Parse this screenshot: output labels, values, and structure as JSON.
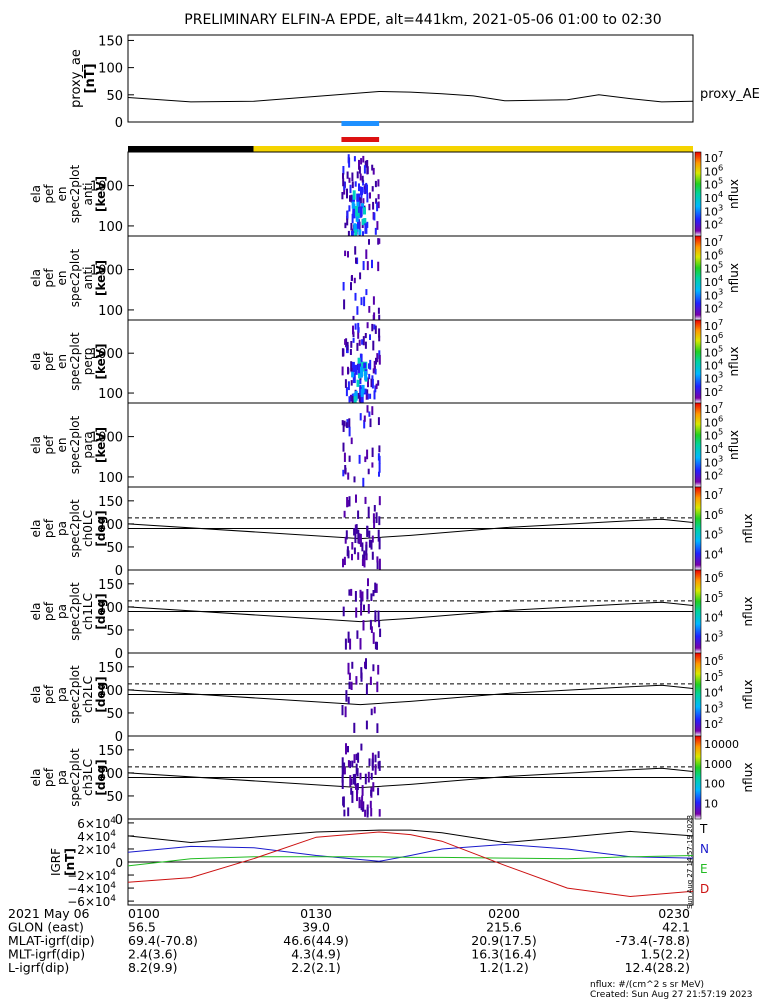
{
  "title": "PRELIMINARY ELFIN-A EPDE, alt=441km, 2021-05-06 01:00 to 02:30",
  "colors": {
    "black": "#000000",
    "blue_bar": "#1e90ff",
    "red_bar": "#dd1111",
    "yellow": "#f5d400",
    "dark": "#000000",
    "T": "#000000",
    "N": "#1a1acc",
    "E": "#22bb22",
    "D": "#cc1111"
  },
  "chart_data": [
    {
      "type": "line",
      "panel": "proxy_ae",
      "ylabel": [
        "proxy_ae",
        "[nT]"
      ],
      "ylim": [
        0,
        150
      ],
      "yticks": [
        "150",
        "100",
        "50",
        "0"
      ],
      "legend": "proxy_AE",
      "x": [
        0,
        10,
        20,
        30,
        40,
        45,
        50,
        55,
        60,
        70,
        75,
        80,
        85,
        90
      ],
      "values": [
        45,
        37,
        38,
        47,
        56,
        55,
        52,
        48,
        39,
        41,
        50,
        43,
        37,
        38
      ]
    },
    {
      "type": "table",
      "panel": "science zone bars",
      "bars": [
        "blue",
        "red"
      ],
      "x_range_minutes": [
        34,
        40
      ],
      "black_range_minutes": [
        0,
        20
      ],
      "yellow_range_minutes": [
        20,
        90
      ]
    },
    {
      "type": "heatmap",
      "panel": "en spec antiparallel",
      "ylabel": [
        "ela",
        "pef",
        "en",
        "spec2plot",
        "anti",
        "[keV]"
      ],
      "yticks": [
        "1000",
        "100"
      ],
      "colorbar": {
        "label": "nflux",
        "ticks": [
          "10^7",
          "10^6",
          "10^5",
          "10^4",
          "10^3",
          "10^2"
        ]
      }
    },
    {
      "type": "heatmap",
      "panel": "en spec anti",
      "ylabel": [
        "ela",
        "pef",
        "en",
        "spec2plot",
        "anti",
        "[keV]"
      ],
      "yticks": [
        "1000",
        "100"
      ],
      "colorbar": {
        "label": "nflux",
        "ticks": [
          "10^7",
          "10^6",
          "10^5",
          "10^4",
          "10^3",
          "10^2"
        ]
      }
    },
    {
      "type": "heatmap",
      "panel": "en spec perp",
      "ylabel": [
        "ela",
        "pef",
        "en",
        "spec2plot",
        "perp",
        "[keV]"
      ],
      "yticks": [
        "1000",
        "100"
      ],
      "colorbar": {
        "label": "nflux",
        "ticks": [
          "10^7",
          "10^6",
          "10^5",
          "10^4",
          "10^3",
          "10^2"
        ]
      }
    },
    {
      "type": "heatmap",
      "panel": "en spec para",
      "ylabel": [
        "ela",
        "pef",
        "en",
        "spec2plot",
        "para",
        "[keV]"
      ],
      "yticks": [
        "1000",
        "100"
      ],
      "colorbar": {
        "label": "nflux",
        "ticks": [
          "10^7",
          "10^6",
          "10^5",
          "10^4",
          "10^3",
          "10^2"
        ]
      }
    },
    {
      "type": "heatmap",
      "panel": "pa ch0LC",
      "ylabel": [
        "ela",
        "pef",
        "pa",
        "spec2plot",
        "ch0LC",
        "[deg]"
      ],
      "ylim": [
        0,
        180
      ],
      "yticks": [
        "150",
        "100",
        "50",
        "0"
      ],
      "colorbar": {
        "label": "nflux",
        "ticks": [
          "10^7",
          "10^6",
          "10^5",
          "10^4"
        ]
      }
    },
    {
      "type": "heatmap",
      "panel": "pa ch1LC",
      "ylabel": [
        "ela",
        "pef",
        "pa",
        "spec2plot",
        "ch1LC",
        "[deg]"
      ],
      "ylim": [
        0,
        180
      ],
      "yticks": [
        "150",
        "100",
        "50",
        "0"
      ],
      "colorbar": {
        "label": "nflux",
        "ticks": [
          "10^6",
          "10^5",
          "10^4",
          "10^3"
        ]
      }
    },
    {
      "type": "heatmap",
      "panel": "pa ch2LC",
      "ylabel": [
        "ela",
        "pef",
        "pa",
        "spec2plot",
        "ch2LC",
        "[deg]"
      ],
      "ylim": [
        0,
        180
      ],
      "yticks": [
        "150",
        "100",
        "50",
        "0"
      ],
      "colorbar": {
        "label": "nflux",
        "ticks": [
          "10^6",
          "10^5",
          "10^4",
          "10^3",
          "10^2"
        ]
      }
    },
    {
      "type": "heatmap",
      "panel": "pa ch3LC",
      "ylabel": [
        "ela",
        "pef",
        "pa",
        "spec2plot",
        "ch3LC",
        "[deg]"
      ],
      "ylim": [
        0,
        180
      ],
      "yticks": [
        "150",
        "100",
        "50",
        "0"
      ],
      "colorbar": {
        "label": "nflux",
        "ticks": [
          "10000",
          "1000",
          "100",
          "10"
        ]
      }
    },
    {
      "type": "line",
      "panel": "IGRF",
      "ylabel": [
        "IGRF",
        "[nT]"
      ],
      "ylim": [
        -60000,
        60000
      ],
      "yticks": [
        "6×10⁴",
        "4×10⁴",
        "2×10⁴",
        "0",
        "−2×10⁴",
        "−4×10⁴",
        "−6×10⁴"
      ],
      "legend": [
        "T",
        "N",
        "E",
        "D"
      ],
      "x": [
        0,
        10,
        20,
        30,
        40,
        45,
        50,
        60,
        70,
        80,
        90
      ],
      "series": [
        {
          "name": "T",
          "values": [
            40000,
            30000,
            38000,
            46000,
            49000,
            49000,
            45000,
            30000,
            38000,
            47000,
            40000
          ]
        },
        {
          "name": "N",
          "values": [
            15000,
            24000,
            22000,
            10000,
            1000,
            10000,
            20000,
            27000,
            20000,
            8000,
            6000
          ]
        },
        {
          "name": "E",
          "values": [
            -6000,
            5000,
            8000,
            8000,
            8000,
            7000,
            7000,
            6000,
            5000,
            8000,
            10000
          ]
        },
        {
          "name": "D",
          "values": [
            -31000,
            -24000,
            5000,
            38000,
            46000,
            42000,
            32000,
            -5000,
            -40000,
            -53000,
            -45000
          ]
        }
      ]
    }
  ],
  "annotation": {
    "table_rows": [
      {
        "label": "2021 May 06",
        "values": [
          "0100",
          "0130",
          "0200",
          "0230"
        ]
      },
      {
        "label": "GLON (east)",
        "values": [
          "56.5",
          "39.0",
          "215.6",
          "42.1"
        ]
      },
      {
        "label": "MLAT-igrf(dip)",
        "values": [
          "69.4(-70.8)",
          "46.6(44.9)",
          "20.9(17.5)",
          "-73.4(-78.8)"
        ]
      },
      {
        "label": "MLT-igrf(dip)",
        "values": [
          "2.4(3.6)",
          "4.3(4.9)",
          "16.3(16.4)",
          "1.5(2.2)"
        ]
      },
      {
        "label": "L-igrf(dip)",
        "values": [
          "8.2(9.9)",
          "2.2(2.1)",
          "1.2(1.2)",
          "12.4(28.2)"
        ]
      }
    ],
    "footer_units": "nflux: #/(cm^2 s sr MeV)",
    "footer_created": "Created: Sun Aug 27 21:57:19 2023",
    "side_stamp": "Sun Aug 27 14:57:19 2023"
  }
}
